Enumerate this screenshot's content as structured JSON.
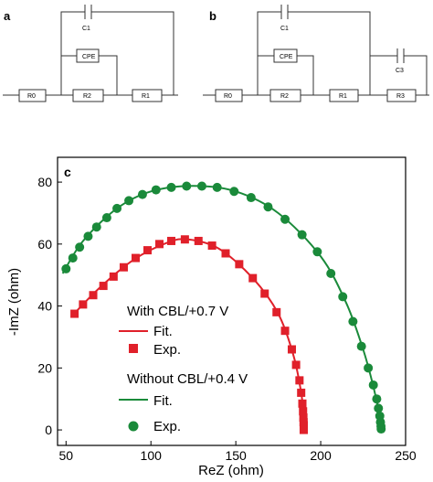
{
  "panels": {
    "a": "a",
    "b": "b",
    "c": "c"
  },
  "circuit_a": {
    "capacitor": "C1",
    "cpe": "CPE",
    "resistors": [
      "R0",
      "R2",
      "R1"
    ]
  },
  "circuit_b": {
    "capacitors": [
      "C1",
      "C3"
    ],
    "cpe": "CPE",
    "resistors": [
      "R0",
      "R2",
      "R1",
      "R3"
    ]
  },
  "legend": {
    "group1_title": "With CBL/+0.7 V",
    "group1_fit": "Fit.",
    "group1_exp": "Exp.",
    "group2_title": "Without CBL/+0.4 V",
    "group2_fit": "Fit.",
    "group2_exp": "Exp."
  },
  "colors": {
    "with_cbl": "#e0202a",
    "without_cbl": "#1a8a3a"
  },
  "chart_data": {
    "type": "scatter",
    "xlabel": "ReZ (ohm)",
    "ylabel": "-ImZ (ohm)",
    "xlim": [
      45,
      250
    ],
    "ylim": [
      -5,
      88
    ],
    "xticks": [
      50,
      100,
      150,
      200,
      250
    ],
    "yticks": [
      0,
      20,
      40,
      60,
      80
    ],
    "series": [
      {
        "name": "With CBL/+0.7 V",
        "marker": "square",
        "points": [
          [
            55,
            37.5
          ],
          [
            60,
            40.5
          ],
          [
            66,
            43.5
          ],
          [
            72,
            46.5
          ],
          [
            78,
            49.5
          ],
          [
            84,
            52.5
          ],
          [
            91,
            55.5
          ],
          [
            98,
            58
          ],
          [
            105,
            60
          ],
          [
            112,
            61
          ],
          [
            120,
            61.5
          ],
          [
            128,
            61
          ],
          [
            136,
            59.5
          ],
          [
            144,
            57
          ],
          [
            152,
            53.5
          ],
          [
            160,
            49
          ],
          [
            167,
            44
          ],
          [
            174,
            38
          ],
          [
            179,
            32
          ],
          [
            183,
            26
          ],
          [
            185.5,
            21
          ],
          [
            187.5,
            16
          ],
          [
            188.5,
            12
          ],
          [
            189.2,
            8.5
          ],
          [
            189.6,
            6
          ],
          [
            189.8,
            4
          ],
          [
            189.9,
            2.5
          ],
          [
            190,
            1.5
          ],
          [
            190,
            0.8
          ],
          [
            190,
            0.3
          ],
          [
            190,
            0
          ]
        ],
        "fit_points": [
          [
            53,
            36.5
          ],
          [
            70,
            46
          ],
          [
            90,
            55
          ],
          [
            110,
            60.5
          ],
          [
            122,
            61.5
          ],
          [
            140,
            58.5
          ],
          [
            160,
            49
          ],
          [
            175,
            37.5
          ],
          [
            184,
            24
          ],
          [
            188.5,
            12
          ],
          [
            190,
            4
          ],
          [
            190,
            0
          ]
        ]
      },
      {
        "name": "Without CBL/+0.4 V",
        "marker": "circle",
        "points": [
          [
            50,
            52
          ],
          [
            54,
            55.5
          ],
          [
            58,
            59
          ],
          [
            63,
            62.5
          ],
          [
            68,
            65.5
          ],
          [
            74,
            68.5
          ],
          [
            80,
            71.5
          ],
          [
            87,
            74
          ],
          [
            95,
            76
          ],
          [
            103,
            77.5
          ],
          [
            112,
            78.3
          ],
          [
            121,
            78.7
          ],
          [
            130,
            78.7
          ],
          [
            139,
            78.3
          ],
          [
            149,
            77
          ],
          [
            159,
            75
          ],
          [
            169,
            72
          ],
          [
            179,
            68
          ],
          [
            189,
            63
          ],
          [
            198,
            57.5
          ],
          [
            206,
            50.5
          ],
          [
            213,
            43
          ],
          [
            219,
            35
          ],
          [
            224,
            27
          ],
          [
            228,
            20
          ],
          [
            231,
            14.5
          ],
          [
            233,
            10
          ],
          [
            234,
            7
          ],
          [
            234.8,
            4.5
          ],
          [
            235.2,
            2.5
          ],
          [
            235.5,
            1.2
          ],
          [
            235.6,
            0.3
          ]
        ],
        "fit_points": [
          [
            48,
            50.5
          ],
          [
            60,
            61
          ],
          [
            80,
            71.5
          ],
          [
            100,
            77
          ],
          [
            125,
            78.8
          ],
          [
            150,
            77
          ],
          [
            175,
            70
          ],
          [
            200,
            56
          ],
          [
            215,
            41
          ],
          [
            225,
            26
          ],
          [
            231,
            14
          ],
          [
            234.5,
            5
          ],
          [
            235.6,
            0
          ]
        ]
      }
    ]
  }
}
